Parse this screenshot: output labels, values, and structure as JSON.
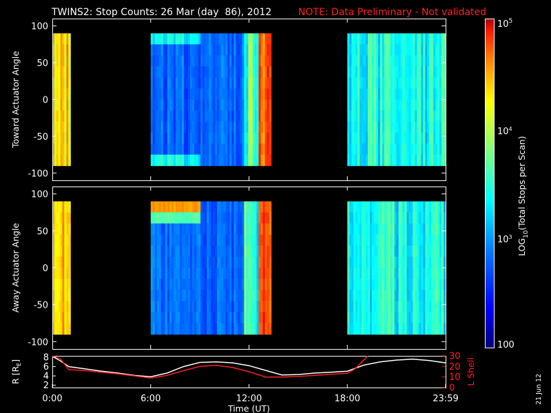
{
  "header": {
    "title": "TWINS2: Stop Counts: 26 Mar (day  86), 2012",
    "note": "NOTE: Data Preliminary - Not validated"
  },
  "side_stamp": "21 Jun 12",
  "colorbar": {
    "label_main": "LOG",
    "label_sub": "10",
    "label_tail": "(Total Stops per Scan)",
    "tick_top": "10",
    "tick_top_exp": "5",
    "tick_mid": "10",
    "tick_mid_exp": "4",
    "tick_low": "10",
    "tick_low_exp": "3",
    "tick_bottom": "100",
    "colors": [
      "#00007f",
      "#0000ff",
      "#0080ff",
      "#00ffff",
      "#80ff80",
      "#ffff00",
      "#ff8000",
      "#ff0000",
      "#800000"
    ]
  },
  "chart_data": [
    {
      "type": "heatmap",
      "title": "",
      "ylabel": "Toward Actuator Angle",
      "ylim": [
        -110,
        110
      ],
      "yticks": [
        "100",
        "50",
        "0",
        "-50",
        "-100"
      ],
      "xlim_hours": [
        0,
        24
      ],
      "data_intervals_hours": [
        [
          0,
          1.1
        ],
        [
          6,
          13.35
        ],
        [
          18,
          24
        ]
      ],
      "color_scale": "log10 counts, 100 to 1e5"
    },
    {
      "type": "heatmap",
      "title": "",
      "ylabel": "Away Actuator Angle",
      "ylim": [
        -110,
        110
      ],
      "yticks": [
        "100",
        "50",
        "0",
        "-50",
        "-100"
      ],
      "xlim_hours": [
        0,
        24
      ],
      "data_intervals_hours": [
        [
          0,
          1.1
        ],
        [
          6,
          13.35
        ],
        [
          18,
          24
        ]
      ],
      "color_scale": "log10 counts, 100 to 1e5"
    },
    {
      "type": "line",
      "ylabel_left": "R [R",
      "ylabel_left_sub": "E",
      "ylabel_left_tail": "]",
      "ylabel_right": "L Shell",
      "xlabel": "Time (UT)",
      "xticks": [
        "0:00",
        "6:00",
        "12:00",
        "18:00",
        "23:59"
      ],
      "yticks_left": [
        "8",
        "6",
        "4",
        "2"
      ],
      "yticks_right": [
        "30",
        "20",
        "10",
        "0"
      ],
      "ylim_left": [
        1.5,
        8.3
      ],
      "ylim_right": [
        0,
        30
      ],
      "series": [
        {
          "name": "R",
          "color": "#ffffff",
          "x": [
            0,
            0.5,
            1,
            2,
            3,
            4,
            5,
            6,
            7,
            8,
            9,
            10,
            11,
            12,
            13,
            14,
            15,
            16,
            17,
            18,
            19,
            20,
            21,
            22,
            23,
            24
          ],
          "y": [
            8.2,
            7.2,
            6.0,
            5.5,
            5.0,
            4.6,
            4.1,
            3.8,
            4.6,
            6.0,
            6.9,
            7.0,
            6.8,
            6.2,
            5.2,
            4.2,
            4.3,
            4.6,
            4.8,
            5.0,
            6.3,
            7.0,
            7.4,
            7.6,
            7.3,
            6.8
          ]
        },
        {
          "name": "L Shell",
          "color": "#ff2020",
          "x": [
            0,
            0.5,
            1,
            2,
            3,
            4,
            5,
            6,
            7,
            8,
            9,
            10,
            11,
            12,
            13,
            14,
            15,
            16,
            17,
            18,
            18.5,
            19,
            19.25
          ],
          "y": [
            30,
            27,
            17,
            16,
            14.5,
            13,
            11,
            9,
            11.5,
            16,
            20,
            21,
            19,
            15,
            10,
            10,
            10.5,
            11.5,
            12.5,
            13.5,
            18,
            26,
            30
          ]
        }
      ]
    }
  ]
}
